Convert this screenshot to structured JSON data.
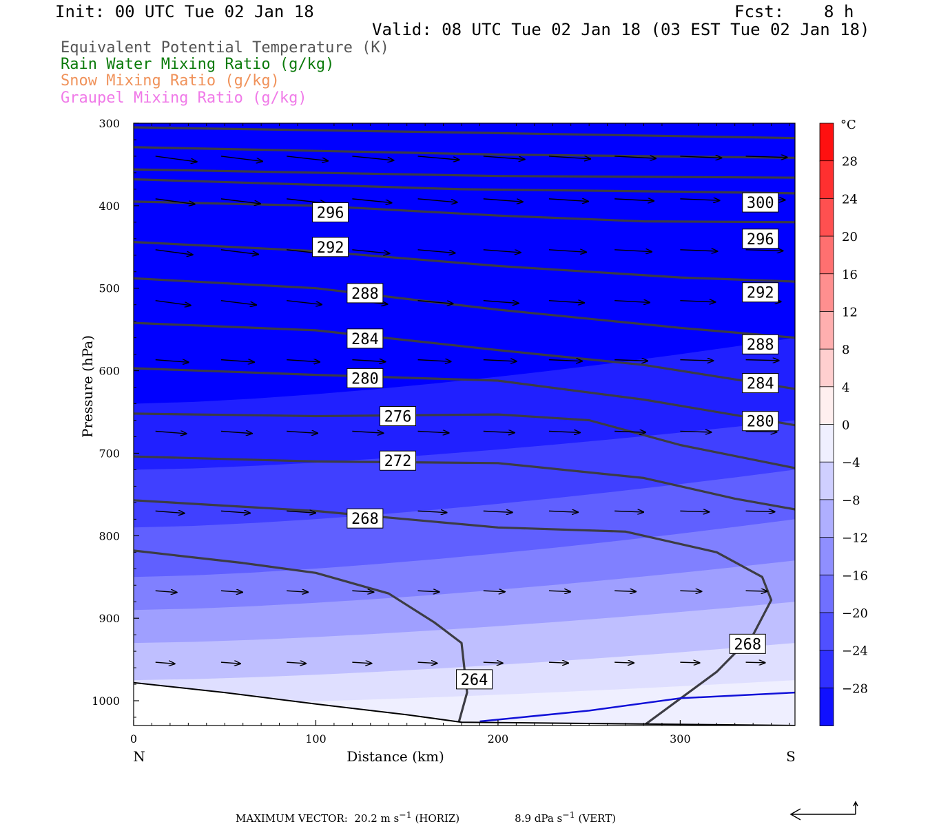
{
  "header": {
    "init": "Init: 00 UTC Tue 02 Jan 18",
    "fcst": "Fcst:    8 h",
    "valid": "Valid: 08 UTC Tue 02 Jan 18 (03 EST Tue 02 Jan 18)"
  },
  "fields": [
    {
      "label": "Equivalent Potential Temperature (K)",
      "color": "#555555"
    },
    {
      "label": "Rain Water Mixing Ratio (g/kg)",
      "color": "#0a7a0a"
    },
    {
      "label": "Snow Mixing Ratio (g/kg)",
      "color": "#f0925a"
    },
    {
      "label": "Graupel Mixing Ratio (g/kg)",
      "color": "#f07ae8"
    }
  ],
  "chart_data": {
    "type": "cross-section",
    "xlabel": "Distance (km)",
    "ylabel": "Pressure (hPa)",
    "xlim": [
      0,
      363
    ],
    "ylim": [
      300,
      1030
    ],
    "x_ticks": [
      0,
      100,
      200,
      300
    ],
    "y_ticks": [
      300,
      400,
      500,
      600,
      700,
      800,
      900,
      1000
    ],
    "left_end_label": "N",
    "right_end_label": "S",
    "colorbar": {
      "unit": "°C",
      "tick_labels": [
        "28",
        "24",
        "20",
        "16",
        "12",
        "8",
        "4",
        "0",
        "−4",
        "−8",
        "−12",
        "−16",
        "−20",
        "−24",
        "−28"
      ],
      "tick_values": [
        28,
        24,
        20,
        16,
        12,
        8,
        4,
        0,
        -4,
        -8,
        -12,
        -16,
        -20,
        -24,
        -28
      ],
      "range": [
        -32,
        32
      ],
      "step": 4
    },
    "isentropes": [
      {
        "theta_e": 300,
        "points": [
          [
            0,
            356
          ],
          [
            200,
            364
          ],
          [
            363,
            366
          ]
        ]
      },
      {
        "theta_e": 300,
        "points": [
          [
            0,
            305
          ],
          [
            200,
            312
          ],
          [
            363,
            318
          ]
        ]
      },
      {
        "theta_e": 300,
        "points": [
          [
            0,
            329
          ],
          [
            200,
            338
          ],
          [
            363,
            342
          ]
        ]
      },
      {
        "theta_e": 300,
        "points": [
          [
            0,
            368
          ],
          [
            180,
            380
          ],
          [
            300,
            383
          ],
          [
            363,
            385
          ]
        ]
      },
      {
        "theta_e": 296,
        "points": [
          [
            0,
            395
          ],
          [
            100,
            400
          ],
          [
            200,
            412
          ],
          [
            280,
            419
          ],
          [
            363,
            420
          ]
        ]
      },
      {
        "theta_e": 292,
        "points": [
          [
            0,
            444
          ],
          [
            100,
            455
          ],
          [
            200,
            473
          ],
          [
            300,
            487
          ],
          [
            363,
            492
          ]
        ]
      },
      {
        "theta_e": 288,
        "points": [
          [
            0,
            488
          ],
          [
            100,
            500
          ],
          [
            200,
            526
          ],
          [
            300,
            548
          ],
          [
            363,
            560
          ]
        ]
      },
      {
        "theta_e": 284,
        "points": [
          [
            0,
            542
          ],
          [
            100,
            551
          ],
          [
            200,
            575
          ],
          [
            280,
            593
          ],
          [
            363,
            622
          ]
        ]
      },
      {
        "theta_e": 280,
        "points": [
          [
            0,
            597
          ],
          [
            100,
            605
          ],
          [
            200,
            612
          ],
          [
            280,
            635
          ],
          [
            363,
            666
          ]
        ]
      },
      {
        "theta_e": 276,
        "points": [
          [
            0,
            652
          ],
          [
            100,
            655
          ],
          [
            200,
            653
          ],
          [
            250,
            660
          ],
          [
            300,
            690
          ],
          [
            363,
            718
          ]
        ]
      },
      {
        "theta_e": 272,
        "points": [
          [
            0,
            704
          ],
          [
            100,
            710
          ],
          [
            200,
            712
          ],
          [
            280,
            730
          ],
          [
            330,
            755
          ],
          [
            363,
            768
          ]
        ]
      },
      {
        "theta_e": 268,
        "points": [
          [
            0,
            757
          ],
          [
            100,
            770
          ],
          [
            200,
            790
          ],
          [
            270,
            795
          ],
          [
            320,
            820
          ],
          [
            345,
            850
          ],
          [
            350,
            878
          ],
          [
            340,
            920
          ],
          [
            320,
            965
          ],
          [
            280,
            1030
          ]
        ]
      },
      {
        "theta_e": 264,
        "points": [
          [
            0,
            818
          ],
          [
            60,
            833
          ],
          [
            100,
            845
          ],
          [
            140,
            870
          ],
          [
            165,
            905
          ],
          [
            180,
            930
          ],
          [
            183,
            990
          ],
          [
            178,
            1030
          ]
        ]
      }
    ],
    "contour_labels": [
      {
        "value": "296",
        "x": 108,
        "p": 408
      },
      {
        "value": "292",
        "x": 108,
        "p": 450
      },
      {
        "value": "288",
        "x": 127,
        "p": 506
      },
      {
        "value": "284",
        "x": 127,
        "p": 561
      },
      {
        "value": "280",
        "x": 127,
        "p": 609
      },
      {
        "value": "276",
        "x": 145,
        "p": 655
      },
      {
        "value": "272",
        "x": 145,
        "p": 709
      },
      {
        "value": "268",
        "x": 127,
        "p": 779
      },
      {
        "value": "264",
        "x": 187,
        "p": 974
      },
      {
        "value": "300",
        "x": 344,
        "p": 396
      },
      {
        "value": "296",
        "x": 344,
        "p": 440
      },
      {
        "value": "292",
        "x": 344,
        "p": 505
      },
      {
        "value": "288",
        "x": 344,
        "p": 568
      },
      {
        "value": "284",
        "x": 344,
        "p": 615
      },
      {
        "value": "280",
        "x": 344,
        "p": 661
      },
      {
        "value": "268",
        "x": 337,
        "p": 931
      }
    ],
    "zero_isotherm": [
      [
        190,
        1025
      ],
      [
        250,
        1012
      ],
      [
        300,
        997
      ],
      [
        363,
        990
      ]
    ],
    "terrain": [
      [
        0,
        978
      ],
      [
        50,
        990
      ],
      [
        100,
        1004
      ],
      [
        150,
        1017
      ],
      [
        180,
        1026
      ],
      [
        363,
        1030
      ]
    ]
  },
  "footer": {
    "max_vector": "MAXIMUM VECTOR:  20.2 m s",
    "exp1": "−1",
    "horiz": " (HORIZ)",
    "vert_val": "8.9 dPa s",
    "exp2": "−1",
    "vert": " (VERT)"
  }
}
